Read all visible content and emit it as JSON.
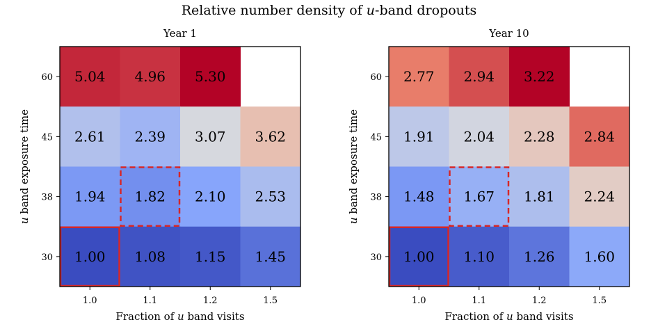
{
  "figure": {
    "suptitle_prefix": "Relative number density of ",
    "suptitle_var": "u",
    "suptitle_suffix": "-band dropouts"
  },
  "chart_data": [
    {
      "type": "heatmap",
      "title": "Year 1",
      "xlabel": "Fraction of u band visits",
      "ylabel": "u band exposure time",
      "x_categories": [
        "1.0",
        "1.1",
        "1.2",
        "1.5"
      ],
      "y_categories": [
        "60",
        "45",
        "38",
        "30"
      ],
      "colormap": "coolwarm",
      "vmin": 1.0,
      "vmax": 5.3,
      "values": [
        [
          5.04,
          4.96,
          5.3,
          null
        ],
        [
          2.61,
          2.39,
          3.07,
          3.62
        ],
        [
          1.94,
          1.82,
          2.1,
          2.53
        ],
        [
          1.0,
          1.08,
          1.15,
          1.45
        ]
      ],
      "highlight_solid": {
        "row": 3,
        "col": 0,
        "color": "#d62728"
      },
      "highlight_dashed": {
        "row": 2,
        "col": 1,
        "color": "#d62728"
      }
    },
    {
      "type": "heatmap",
      "title": "Year 10",
      "xlabel": "Fraction of u band visits",
      "ylabel": "u band exposure time",
      "x_categories": [
        "1.0",
        "1.1",
        "1.2",
        "1.5"
      ],
      "y_categories": [
        "60",
        "45",
        "38",
        "30"
      ],
      "colormap": "coolwarm",
      "vmin": 1.0,
      "vmax": 3.22,
      "values": [
        [
          2.77,
          2.94,
          3.22,
          null
        ],
        [
          1.91,
          2.04,
          2.28,
          2.84
        ],
        [
          1.48,
          1.67,
          1.81,
          2.24
        ],
        [
          1.0,
          1.1,
          1.26,
          1.6
        ]
      ],
      "highlight_solid": {
        "row": 3,
        "col": 0,
        "color": "#d62728"
      },
      "highlight_dashed": {
        "row": 2,
        "col": 1,
        "color": "#d62728"
      }
    }
  ]
}
